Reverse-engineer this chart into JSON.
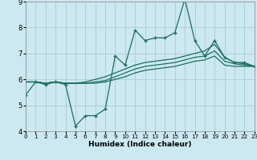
{
  "xlabel": "Humidex (Indice chaleur)",
  "bg_color": "#cce8f0",
  "grid_color": "#aaccdd",
  "line_color": "#1a7060",
  "xlim": [
    0,
    23
  ],
  "ylim": [
    4,
    9
  ],
  "yticks": [
    4,
    5,
    6,
    7,
    8,
    9
  ],
  "xticks": [
    0,
    1,
    2,
    3,
    4,
    5,
    6,
    7,
    8,
    9,
    10,
    11,
    12,
    13,
    14,
    15,
    16,
    17,
    18,
    19,
    20,
    21,
    22,
    23
  ],
  "series1_x": [
    0,
    1,
    2,
    3,
    4,
    5,
    6,
    7,
    8,
    9,
    10,
    11,
    12,
    13,
    14,
    15,
    16,
    17,
    18,
    19,
    20,
    21,
    22,
    23
  ],
  "series1_y": [
    5.4,
    5.9,
    5.8,
    5.9,
    5.8,
    4.2,
    4.6,
    4.6,
    4.85,
    6.9,
    6.55,
    7.9,
    7.5,
    7.6,
    7.6,
    7.8,
    9.1,
    7.5,
    6.9,
    7.5,
    6.85,
    6.65,
    6.65,
    6.5
  ],
  "series2_x": [
    0,
    1,
    2,
    3,
    4,
    5,
    6,
    7,
    8,
    9,
    10,
    11,
    12,
    13,
    14,
    15,
    16,
    17,
    18,
    19,
    20,
    21,
    22,
    23
  ],
  "series2_y": [
    5.9,
    5.9,
    5.85,
    5.9,
    5.85,
    5.85,
    5.9,
    6.0,
    6.1,
    6.25,
    6.4,
    6.55,
    6.65,
    6.7,
    6.75,
    6.8,
    6.9,
    7.0,
    7.1,
    7.35,
    6.85,
    6.65,
    6.6,
    6.5
  ],
  "series3_x": [
    0,
    1,
    2,
    3,
    4,
    5,
    6,
    7,
    8,
    9,
    10,
    11,
    12,
    13,
    14,
    15,
    16,
    17,
    18,
    19,
    20,
    21,
    22,
    23
  ],
  "series3_y": [
    5.9,
    5.9,
    5.85,
    5.9,
    5.85,
    5.85,
    5.85,
    5.9,
    5.95,
    6.1,
    6.25,
    6.4,
    6.5,
    6.55,
    6.6,
    6.65,
    6.75,
    6.85,
    6.9,
    7.1,
    6.7,
    6.6,
    6.55,
    6.5
  ],
  "series4_x": [
    0,
    1,
    2,
    3,
    4,
    5,
    6,
    7,
    8,
    9,
    10,
    11,
    12,
    13,
    14,
    15,
    16,
    17,
    18,
    19,
    20,
    21,
    22,
    23
  ],
  "series4_y": [
    5.9,
    5.9,
    5.85,
    5.9,
    5.85,
    5.85,
    5.85,
    5.85,
    5.9,
    6.0,
    6.1,
    6.25,
    6.35,
    6.4,
    6.45,
    6.5,
    6.6,
    6.7,
    6.75,
    6.9,
    6.55,
    6.5,
    6.5,
    6.5
  ]
}
